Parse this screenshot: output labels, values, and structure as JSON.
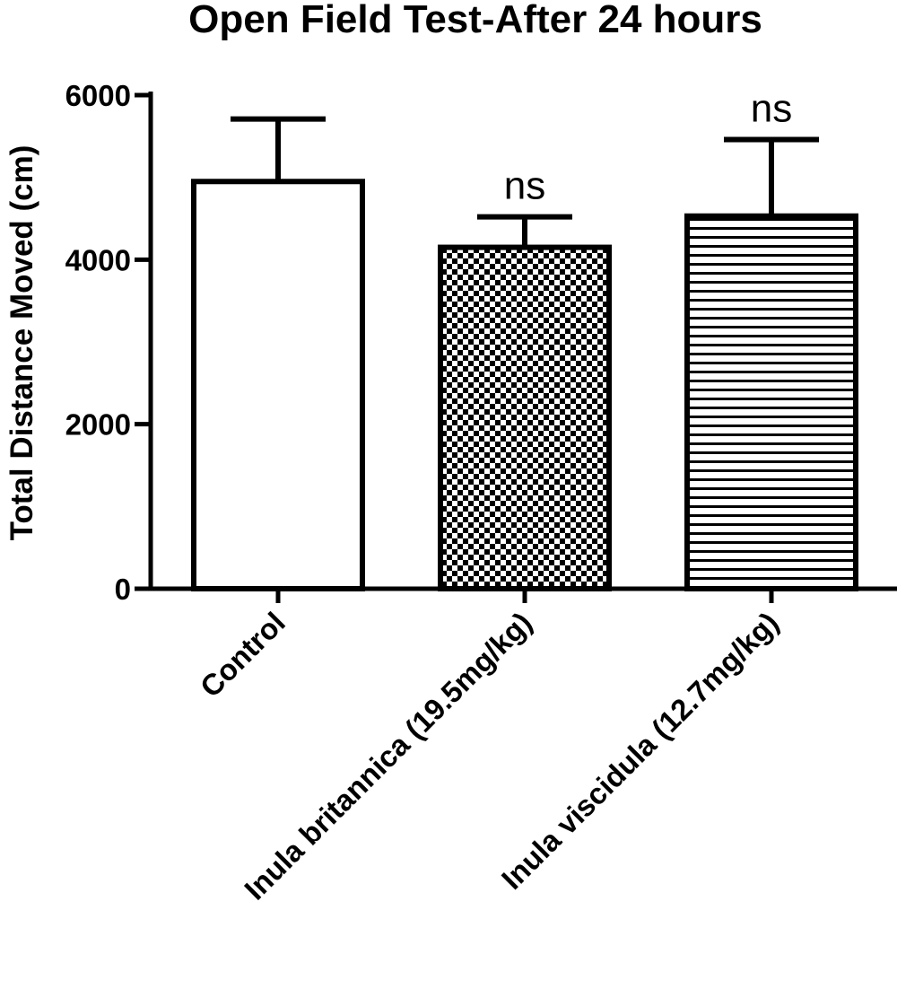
{
  "chart_data": {
    "type": "bar",
    "title": "Open Field Test-After 24 hours",
    "ylabel": "Total Distance Moved (cm)",
    "xlabel": "",
    "ylim": [
      0,
      6000
    ],
    "yticks": [
      0,
      2000,
      4000,
      6000
    ],
    "categories": [
      "Control",
      "Inula britannica (19.5mg/kg)",
      "Inula viscidula (12.7mg/kg)"
    ],
    "values": [
      4950,
      4150,
      4530
    ],
    "errors": [
      760,
      370,
      930
    ],
    "annotations": [
      "",
      "ns",
      "ns"
    ],
    "fills": [
      "solid-white",
      "checkerboard",
      "horizontal-stripes"
    ],
    "colors": {
      "stroke": "#000000",
      "fill": "#ffffff"
    },
    "grid": false,
    "legend": "none"
  }
}
